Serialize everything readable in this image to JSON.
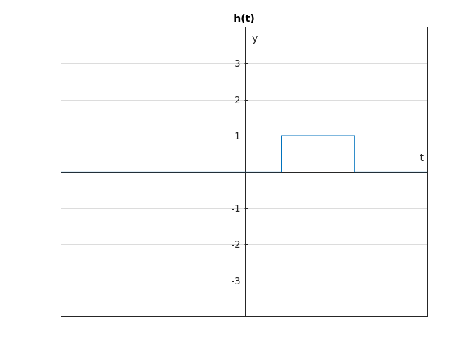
{
  "chart_data": {
    "type": "line",
    "title": "h(t)",
    "xlabel": "t",
    "ylabel": "y",
    "xlim": [
      -5,
      5
    ],
    "ylim": [
      -4,
      4
    ],
    "yticks": [
      -3,
      -2,
      -1,
      1,
      2,
      3
    ],
    "grid": true,
    "axes_location": "origin",
    "series": [
      {
        "color": "#0072BD",
        "x": [
          -5,
          1,
          1,
          3,
          3,
          5
        ],
        "y": [
          0,
          0,
          1,
          1,
          0,
          0
        ]
      }
    ]
  }
}
